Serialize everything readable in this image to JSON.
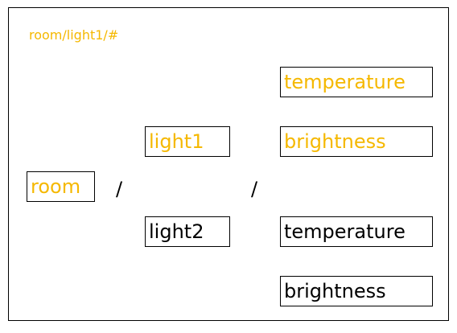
{
  "colors": {
    "highlight": "#f5b800",
    "normal": "#000000"
  },
  "topic": "room/light1/#",
  "nodes": {
    "room": {
      "label": "room",
      "highlighted": true
    },
    "light1": {
      "label": "light1",
      "highlighted": true
    },
    "light2": {
      "label": "light2",
      "highlighted": false
    },
    "light1_temperature": {
      "label": "temperature",
      "highlighted": true
    },
    "light1_brightness": {
      "label": "brightness",
      "highlighted": true
    },
    "light2_temperature": {
      "label": "temperature",
      "highlighted": false
    },
    "light2_brightness": {
      "label": "brightness",
      "highlighted": false
    }
  },
  "separators": {
    "level1": "/",
    "level2": "/"
  }
}
